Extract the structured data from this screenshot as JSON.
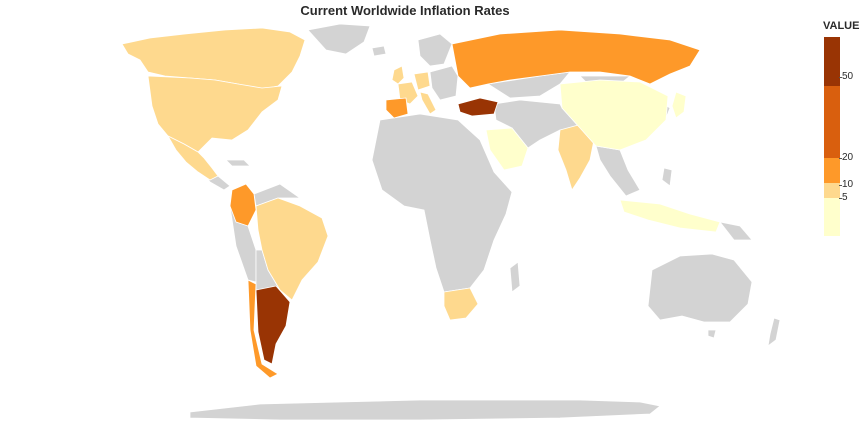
{
  "title": "Current Worldwide Inflation Rates",
  "colors": {
    "no_data": "#d3d3d3",
    "border": "#ffffff",
    "bin_0_5": "#ffffcc",
    "bin_5_10": "#fed98e",
    "bin_10_20": "#fe9929",
    "bin_20_50": "#d95f0e",
    "bin_50_plus": "#993404"
  },
  "legend": {
    "title": "VALUE",
    "ticks": [
      "5",
      "10",
      "20",
      "50"
    ],
    "bins": [
      {
        "range": [
          0,
          5
        ],
        "color": "#ffffcc"
      },
      {
        "range": [
          5,
          10
        ],
        "color": "#fed98e"
      },
      {
        "range": [
          10,
          20
        ],
        "color": "#fe9929"
      },
      {
        "range": [
          20,
          50
        ],
        "color": "#d95f0e"
      },
      {
        "range": [
          50,
          100
        ],
        "color": "#993404"
      }
    ]
  },
  "chart_data": {
    "type": "choropleth",
    "title": "Current Worldwide Inflation Rates",
    "legend_title": "VALUE",
    "countries": [
      {
        "country": "United States",
        "bin": "5-10"
      },
      {
        "country": "Canada",
        "bin": "5-10"
      },
      {
        "country": "Mexico",
        "bin": "5-10"
      },
      {
        "country": "Greenland",
        "bin": "no data"
      },
      {
        "country": "Colombia",
        "bin": "10-20"
      },
      {
        "country": "Brazil",
        "bin": "5-10"
      },
      {
        "country": "Argentina",
        "bin": "50+"
      },
      {
        "country": "Chile",
        "bin": "10-20"
      },
      {
        "country": "Spain",
        "bin": "10-20"
      },
      {
        "country": "France",
        "bin": "5-10"
      },
      {
        "country": "Germany",
        "bin": "5-10"
      },
      {
        "country": "Italy",
        "bin": "5-10"
      },
      {
        "country": "United Kingdom",
        "bin": "5-10"
      },
      {
        "country": "Russia",
        "bin": "10-20"
      },
      {
        "country": "Turkey",
        "bin": "50+"
      },
      {
        "country": "Saudi Arabia",
        "bin": "0-5"
      },
      {
        "country": "India",
        "bin": "5-10"
      },
      {
        "country": "China",
        "bin": "0-5"
      },
      {
        "country": "Japan",
        "bin": "0-5"
      },
      {
        "country": "Indonesia",
        "bin": "0-5"
      },
      {
        "country": "South Africa",
        "bin": "5-10"
      },
      {
        "country": "Australia",
        "bin": "no data"
      }
    ]
  }
}
